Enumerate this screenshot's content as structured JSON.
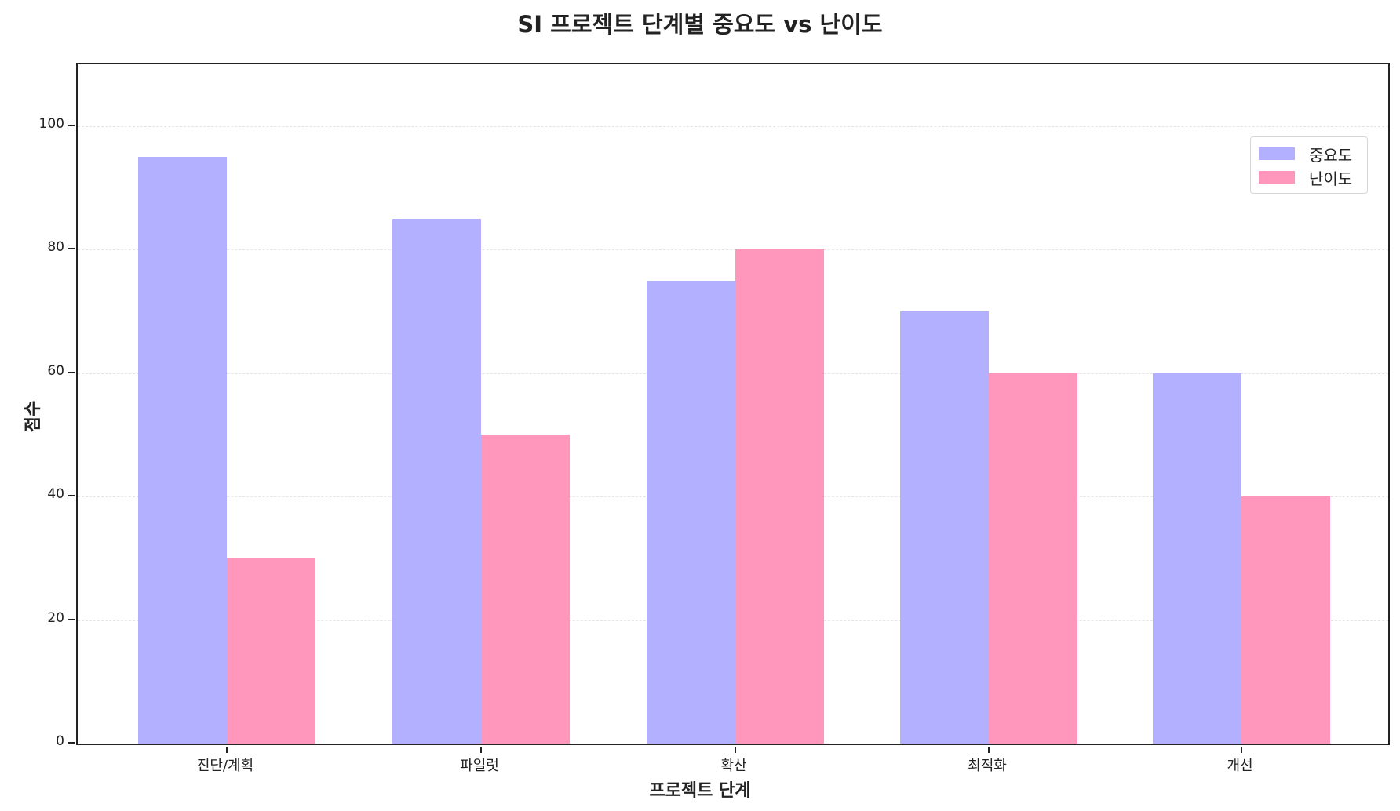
{
  "chart_data": {
    "type": "bar",
    "title": "SI 프로젝트 단계별 중요도 vs 난이도",
    "xlabel": "프로젝트 단계",
    "ylabel": "점수",
    "categories": [
      "진단/계획",
      "파일럿",
      "확산",
      "최적화",
      "개선"
    ],
    "series": [
      {
        "name": "중요도",
        "color": "#b3b0ff",
        "values": [
          95,
          85,
          75,
          70,
          60
        ]
      },
      {
        "name": "난이도",
        "color": "#ff96bb",
        "values": [
          30,
          50,
          80,
          60,
          40
        ]
      }
    ],
    "ylim": [
      0,
      110
    ],
    "yticks": [
      0,
      20,
      40,
      60,
      80,
      100
    ],
    "grid": "y dashed",
    "legend_position": "upper right"
  }
}
